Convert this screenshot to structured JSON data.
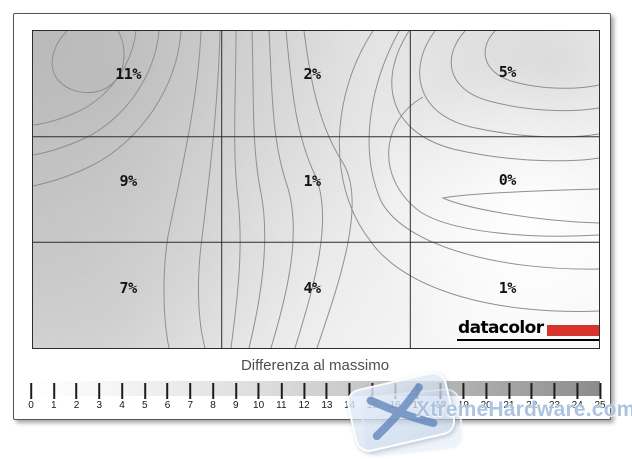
{
  "chart_data": {
    "type": "heatmap",
    "subtype": "contour-uniformity-map",
    "title": "Differenza al massimo",
    "grid": {
      "rows": 3,
      "cols": 3
    },
    "cell_values": [
      [
        11,
        2,
        5
      ],
      [
        9,
        1,
        0
      ],
      [
        7,
        4,
        1
      ]
    ],
    "cell_labels": [
      "11%",
      "2%",
      "5%",
      "9%",
      "1%",
      "0%",
      "7%",
      "4%",
      "1%"
    ],
    "units": "%",
    "legend": {
      "min": 0,
      "max": 25,
      "tick_labels": [
        "0",
        "1",
        "2",
        "3",
        "4",
        "5",
        "6",
        "7",
        "8",
        "9",
        "10",
        "11",
        "12",
        "13",
        "14",
        "15",
        "16",
        "17",
        "18",
        "19",
        "20",
        "21",
        "22",
        "23",
        "24",
        "25"
      ],
      "gradient_start": "#ffffff",
      "gradient_end": "#8c8c8c",
      "position": "bottom"
    },
    "contour_line_color": "#8f8f8f",
    "grid_line_color": "#2d2d2d"
  },
  "logo": {
    "text": "datacolor",
    "bar_color": "#d6342c"
  },
  "watermark": {
    "text": "XtremeHardware.com"
  }
}
